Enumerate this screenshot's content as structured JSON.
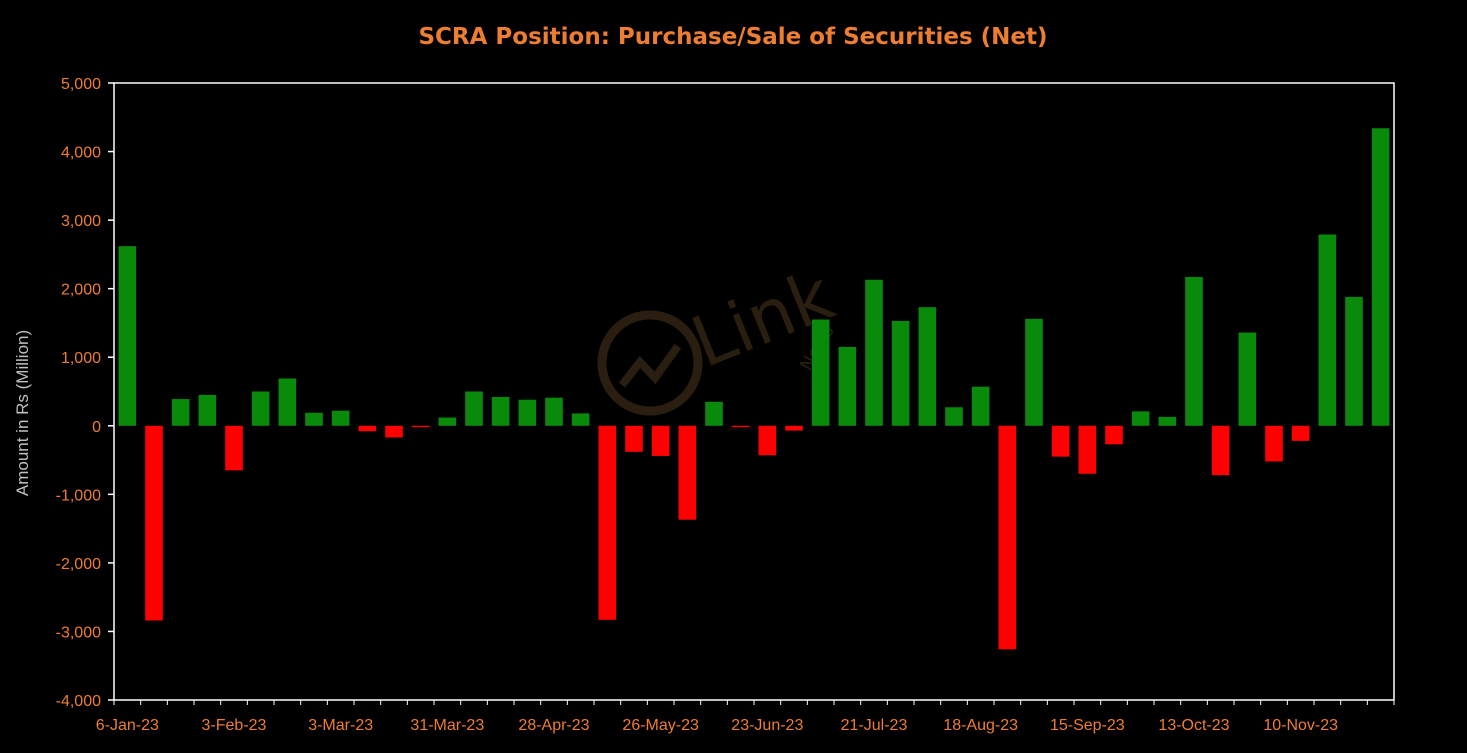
{
  "chart_data": {
    "type": "bar",
    "title": "SCRA Position: Purchase/Sale of Securities (Net)",
    "xlabel": "",
    "ylabel": "Amount in Rs (Million)",
    "ylim": [
      -4000,
      5000
    ],
    "ytick_values": [
      -4000,
      -3000,
      -2000,
      -1000,
      0,
      1000,
      2000,
      3000,
      4000,
      5000
    ],
    "ytick_labels": [
      "-4,000",
      "-3,000",
      "-2,000",
      "-1,000",
      "0",
      "1,000",
      "2,000",
      "3,000",
      "4,000",
      "5,000"
    ],
    "xtick_labels": [
      "6-Jan-23",
      "3-Feb-23",
      "3-Mar-23",
      "31-Mar-23",
      "28-Apr-23",
      "26-May-23",
      "23-Jun-23",
      "21-Jul-23",
      "18-Aug-23",
      "15-Sep-23",
      "13-Oct-23",
      "10-Nov-23"
    ],
    "xtick_every": 4,
    "grid": false,
    "legend": "none",
    "values": [
      2620,
      -2840,
      390,
      450,
      -650,
      500,
      690,
      190,
      220,
      -80,
      -170,
      -20,
      120,
      500,
      420,
      380,
      410,
      180,
      -2830,
      -380,
      -440,
      -1370,
      350,
      -20,
      -430,
      -70,
      1550,
      1150,
      2130,
      1530,
      1730,
      270,
      570,
      -3260,
      1560,
      -450,
      -700,
      -270,
      210,
      130,
      2170,
      -720,
      1360,
      -520,
      -220,
      2790,
      1880,
      4340
    ]
  },
  "colors": {
    "background": "#000000",
    "plot_border": "#ffffff",
    "positive": "#0a8a0a",
    "negative": "#ff0000",
    "title": "#ed7d31",
    "tick_label": "#ed7d31",
    "axis_title": "#bfbfbf"
  },
  "watermark": {
    "text": "Link",
    "subtext": "News"
  }
}
